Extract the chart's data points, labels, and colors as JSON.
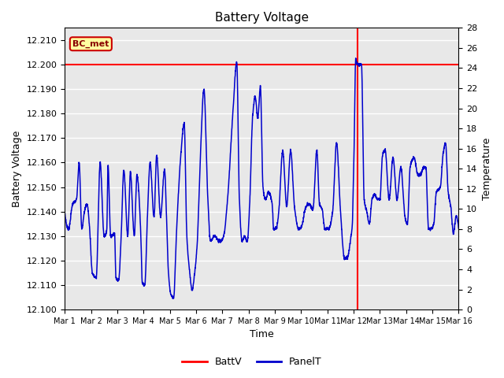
{
  "title": "Battery Voltage",
  "xlabel": "Time",
  "ylabel_left": "Battery Voltage",
  "ylabel_right": "Temperature",
  "annotation_label": "BC_met",
  "batt_voltage": 12.2,
  "ylim_left": [
    12.1,
    12.215
  ],
  "ylim_right": [
    0,
    28
  ],
  "xtick_labels": [
    "Mar 1",
    "Mar 2",
    "Mar 3",
    "Mar 4",
    "Mar 5",
    "Mar 6",
    "Mar 7",
    "Mar 8",
    "Mar 9",
    "Mar 10",
    "Mar 11",
    "Mar 12",
    "Mar 13",
    "Mar 14",
    "Mar 15",
    "Mar 16"
  ],
  "batt_color": "#ff0000",
  "panel_color": "#0000cc",
  "vline_x": 11.15,
  "bg_color": "#e8e8e8",
  "grid_color": "#ffffff",
  "legend_batt_label": "BattV",
  "legend_panel_label": "PanelT",
  "ann_facecolor": "#ffffa0",
  "ann_edgecolor": "#cc0000",
  "ann_textcolor": "#880000"
}
